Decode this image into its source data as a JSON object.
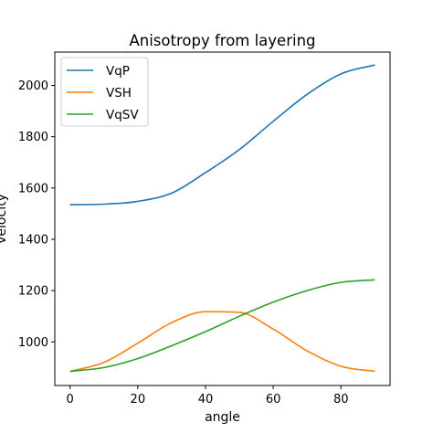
{
  "chart_data": {
    "type": "line",
    "title": "Anisotropy from layering",
    "xlabel": "angle",
    "ylabel": "velocity",
    "xlim": [
      -4.5,
      94.5
    ],
    "ylim": [
      830,
      2130
    ],
    "xticks": [
      0,
      20,
      40,
      60,
      80
    ],
    "yticks": [
      1000,
      1200,
      1400,
      1600,
      1800,
      2000
    ],
    "x_tick_labels": [
      "0",
      "20",
      "40",
      "60",
      "80"
    ],
    "y_tick_labels": [
      "1000",
      "1200",
      "1400",
      "1600",
      "1800",
      "2000"
    ],
    "grid": false,
    "legend_position": "top-left",
    "x": [
      0,
      10,
      20,
      30,
      40,
      50,
      60,
      70,
      80,
      90
    ],
    "series": [
      {
        "name": "VqP",
        "color": "#1f77b4",
        "values": [
          1535,
          1537,
          1548,
          1580,
          1660,
          1750,
          1860,
          1965,
          2045,
          2080
        ]
      },
      {
        "name": "VSH",
        "color": "#ff7f0e",
        "values": [
          885,
          920,
          995,
          1075,
          1118,
          1115,
          1050,
          965,
          905,
          885
        ]
      },
      {
        "name": "VqSV",
        "color": "#2ca02c",
        "values": [
          885,
          900,
          935,
          985,
          1040,
          1100,
          1155,
          1200,
          1232,
          1242
        ]
      }
    ]
  }
}
